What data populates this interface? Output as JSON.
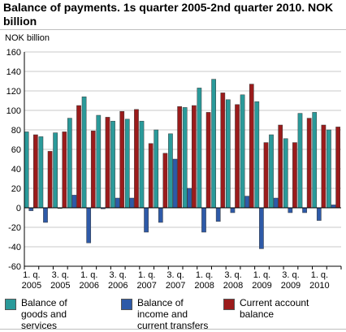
{
  "title": "Balance of payments. 1s quarter 2005-2nd quarter 2010. NOK billion",
  "colors": {
    "goods": "#2a9a9a",
    "income": "#2e5aa8",
    "current": "#9b1b1b",
    "grid": "#c8c8c8",
    "axis": "#000000"
  },
  "chart_data": {
    "type": "bar",
    "title": "Balance of payments. 1s quarter 2005-2nd quarter 2010. NOK billion",
    "ylabel": "NOK billion",
    "xlabel": "",
    "ylim": [
      -60,
      160
    ],
    "yticks": [
      -60,
      -40,
      -20,
      0,
      20,
      40,
      60,
      80,
      100,
      120,
      140,
      160
    ],
    "grid": true,
    "legend_position": "bottom",
    "categories": [
      "2005Q1",
      "2005Q2",
      "2005Q3",
      "2005Q4",
      "2006Q1",
      "2006Q2",
      "2006Q3",
      "2006Q4",
      "2007Q1",
      "2007Q2",
      "2007Q3",
      "2007Q4",
      "2008Q1",
      "2008Q2",
      "2008Q3",
      "2008Q4",
      "2009Q1",
      "2009Q2",
      "2009Q3",
      "2009Q4",
      "2010Q1",
      "2010Q2"
    ],
    "tick_labels": [
      {
        "index": 0,
        "line1": "1. q.",
        "line2": "2005"
      },
      {
        "index": 2,
        "line1": "3. q.",
        "line2": "2005"
      },
      {
        "index": 4,
        "line1": "1. q.",
        "line2": "2006"
      },
      {
        "index": 6,
        "line1": "3. q.",
        "line2": "2006"
      },
      {
        "index": 8,
        "line1": "1. q.",
        "line2": "2007"
      },
      {
        "index": 10,
        "line1": "3. q.",
        "line2": "2007"
      },
      {
        "index": 12,
        "line1": "1. q.",
        "line2": "2008"
      },
      {
        "index": 14,
        "line1": "3. q.",
        "line2": "2008"
      },
      {
        "index": 16,
        "line1": "1. q.",
        "line2": "2009"
      },
      {
        "index": 18,
        "line1": "3. q.",
        "line2": "2009"
      },
      {
        "index": 20,
        "line1": "1. q.",
        "line2": "2010"
      }
    ],
    "series": [
      {
        "name": "Balance of goods and services",
        "color": "#2a9a9a",
        "values": [
          78,
          73,
          77,
          92,
          114,
          95,
          89,
          91,
          89,
          80,
          76,
          103,
          123,
          132,
          111,
          116,
          109,
          75,
          71,
          97,
          98,
          80
        ]
      },
      {
        "name": "Balance of income and current transfers",
        "color": "#2e5aa8",
        "values": [
          -3,
          -15,
          0,
          13,
          -36,
          -1,
          10,
          10,
          -25,
          -15,
          50,
          20,
          -25,
          -14,
          -5,
          12,
          -42,
          10,
          -5,
          -5,
          -13,
          3
        ]
      },
      {
        "name": "Current account balance",
        "color": "#9b1b1b",
        "values": [
          75,
          58,
          78,
          105,
          79,
          93,
          99,
          101,
          66,
          56,
          104,
          105,
          98,
          118,
          106,
          127,
          67,
          85,
          67,
          92,
          85,
          83
        ]
      }
    ]
  },
  "legend": {
    "items": [
      {
        "label": "Balance of goods and services"
      },
      {
        "label": "Balance of income and current transfers"
      },
      {
        "label": "Current account balance"
      }
    ]
  }
}
